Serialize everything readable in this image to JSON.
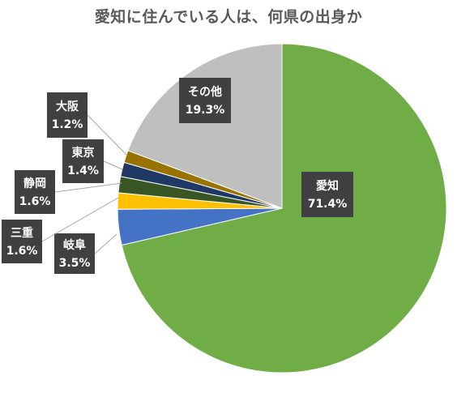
{
  "chart_data": {
    "type": "pie",
    "title": "愛知に住んでいる人は、何県の出身か",
    "slices": [
      {
        "name": "愛知",
        "value": 71.4,
        "pct_label": "71.4%",
        "color": "#70AD47"
      },
      {
        "name": "岐阜",
        "value": 3.5,
        "pct_label": "3.5%",
        "color": "#4472C4"
      },
      {
        "name": "三重",
        "value": 1.6,
        "pct_label": "1.6%",
        "color": "#FFC000"
      },
      {
        "name": "静岡",
        "value": 1.6,
        "pct_label": "1.6%",
        "color": "#375623"
      },
      {
        "name": "東京",
        "value": 1.4,
        "pct_label": "1.4%",
        "color": "#1F3864"
      },
      {
        "name": "大阪",
        "value": 1.2,
        "pct_label": "1.2%",
        "color": "#997300"
      },
      {
        "name": "その他",
        "value": 19.3,
        "pct_label": "19.3%",
        "color": "#BFBFBF"
      }
    ],
    "label_bg_color": "#404040",
    "legend": "none"
  }
}
